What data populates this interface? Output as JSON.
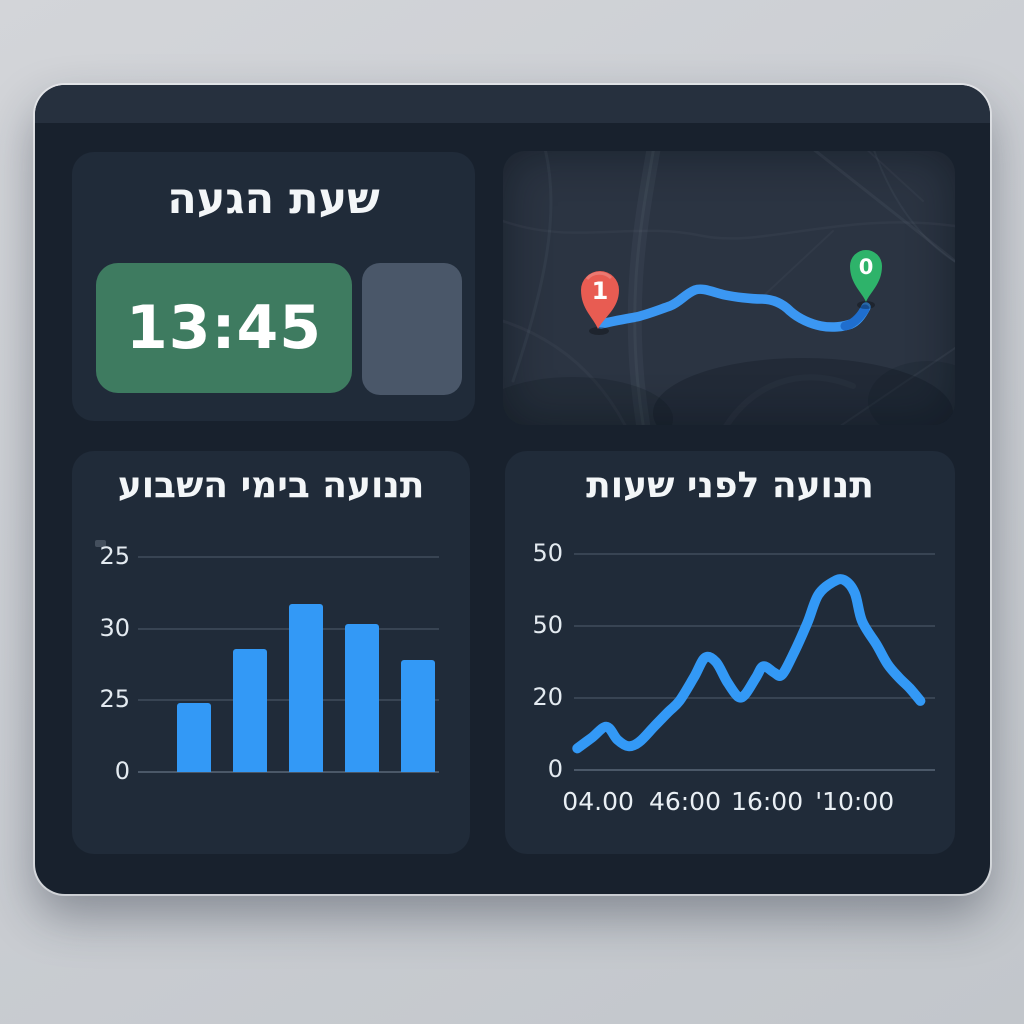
{
  "dashboard": {
    "colors": {
      "background": "#cbced3",
      "frame": "#18212d",
      "frame_topbar": "#26303e",
      "panel": "#202b39",
      "map_background": "#2b3442",
      "accent_blue": "#3399f6",
      "grid": "#3d4958",
      "text": "#f3f6f8"
    },
    "arrival": {
      "title": "שעת הגעה",
      "time": "13:45",
      "time_box_color": "#3e7b60",
      "side_box_color": "#4a5769"
    },
    "map": {
      "destination_pin": {
        "label": "1",
        "color": "#e85c52"
      },
      "origin_pin": {
        "label": "0",
        "color": "#2eb36a"
      },
      "route_color": "#3b97f2"
    }
  },
  "chart_data": [
    {
      "type": "bar",
      "title": "תנועה בימי השבוע",
      "xlabel": "",
      "ylabel": "",
      "y_tick_labels": [
        "25",
        "30",
        "25",
        "0"
      ],
      "categories": [
        "",
        "",
        "",
        "",
        ""
      ],
      "values": [
        32,
        57,
        78,
        69,
        52
      ],
      "ylim": [
        0,
        100
      ],
      "bar_color": "#3399f6",
      "grid": true,
      "legend": false
    },
    {
      "type": "line",
      "title": "תנועה לפני שעות",
      "xlabel": "",
      "ylabel": "",
      "y_tick_labels": [
        "50",
        "50",
        "20",
        "0"
      ],
      "x_tick_labels": [
        "04.00",
        "46:00",
        "16:00",
        "'10:00"
      ],
      "points": [
        [
          2,
          10
        ],
        [
          6,
          15
        ],
        [
          10,
          20
        ],
        [
          13,
          14
        ],
        [
          16,
          11
        ],
        [
          19,
          13
        ],
        [
          23,
          20
        ],
        [
          27,
          27
        ],
        [
          30,
          32
        ],
        [
          34,
          43
        ],
        [
          37,
          52
        ],
        [
          40,
          50
        ],
        [
          43,
          41
        ],
        [
          46,
          34
        ],
        [
          48,
          35
        ],
        [
          51,
          43
        ],
        [
          53,
          48
        ],
        [
          56,
          45
        ],
        [
          58,
          44
        ],
        [
          61,
          53
        ],
        [
          65,
          68
        ],
        [
          68,
          81
        ],
        [
          72,
          87
        ],
        [
          75,
          88
        ],
        [
          78,
          82
        ],
        [
          80,
          69
        ],
        [
          84,
          58
        ],
        [
          87,
          49
        ],
        [
          90,
          43
        ],
        [
          93,
          38
        ],
        [
          96,
          32
        ]
      ],
      "ylim": [
        0,
        100
      ],
      "line_color": "#3399f6",
      "grid": true,
      "legend": false
    }
  ]
}
